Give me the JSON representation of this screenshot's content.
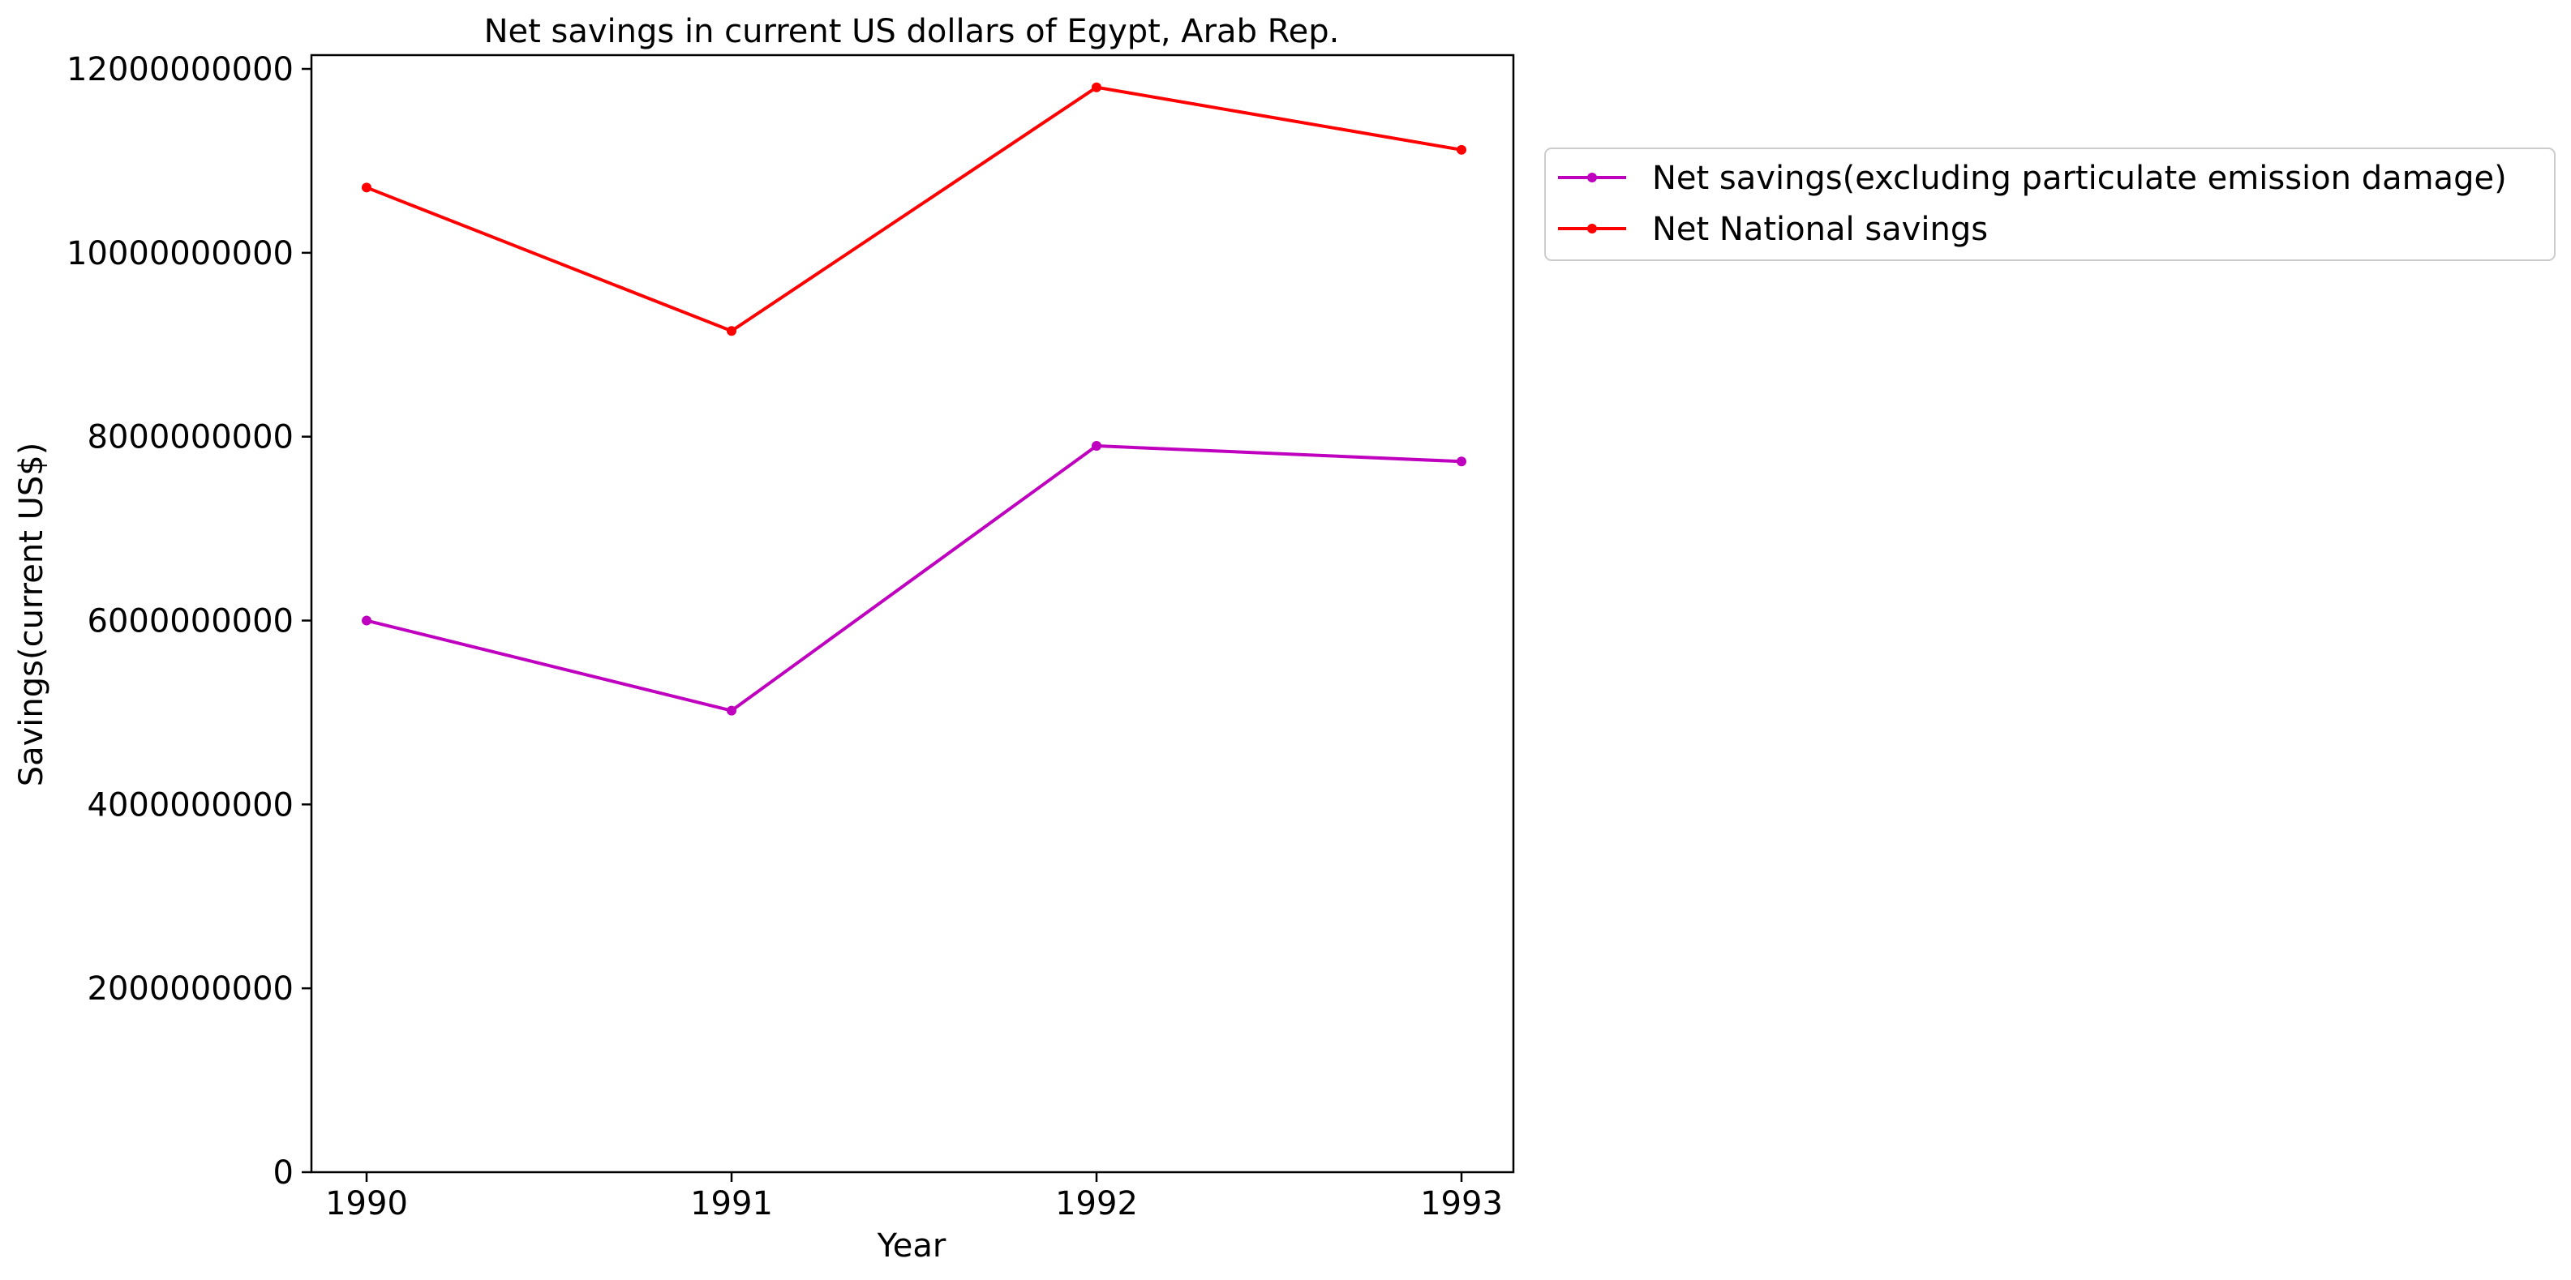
{
  "chart_data": {
    "type": "line",
    "title": "Net savings in current US dollars of Egypt, Arab Rep.",
    "xlabel": "Year",
    "ylabel": "Savings(current US$)",
    "categories": [
      "1990",
      "1991",
      "1992",
      "1993"
    ],
    "y_ticks": [
      "0",
      "2000000000",
      "4000000000",
      "6000000000",
      "8000000000",
      "10000000000",
      "12000000000"
    ],
    "ylim": [
      0,
      12150000000
    ],
    "grid": false,
    "legend_position": "outside-top-right",
    "series": [
      {
        "name": "Net savings(excluding particulate emission damage)",
        "color": "#bf00bf",
        "marker": "circle",
        "values": [
          6000000000,
          5020000000,
          7900000000,
          7730000000
        ]
      },
      {
        "name": "Net National savings",
        "color": "#ff0000",
        "marker": "circle",
        "values": [
          10710000000,
          9150000000,
          11800000000,
          11120000000
        ]
      }
    ]
  }
}
